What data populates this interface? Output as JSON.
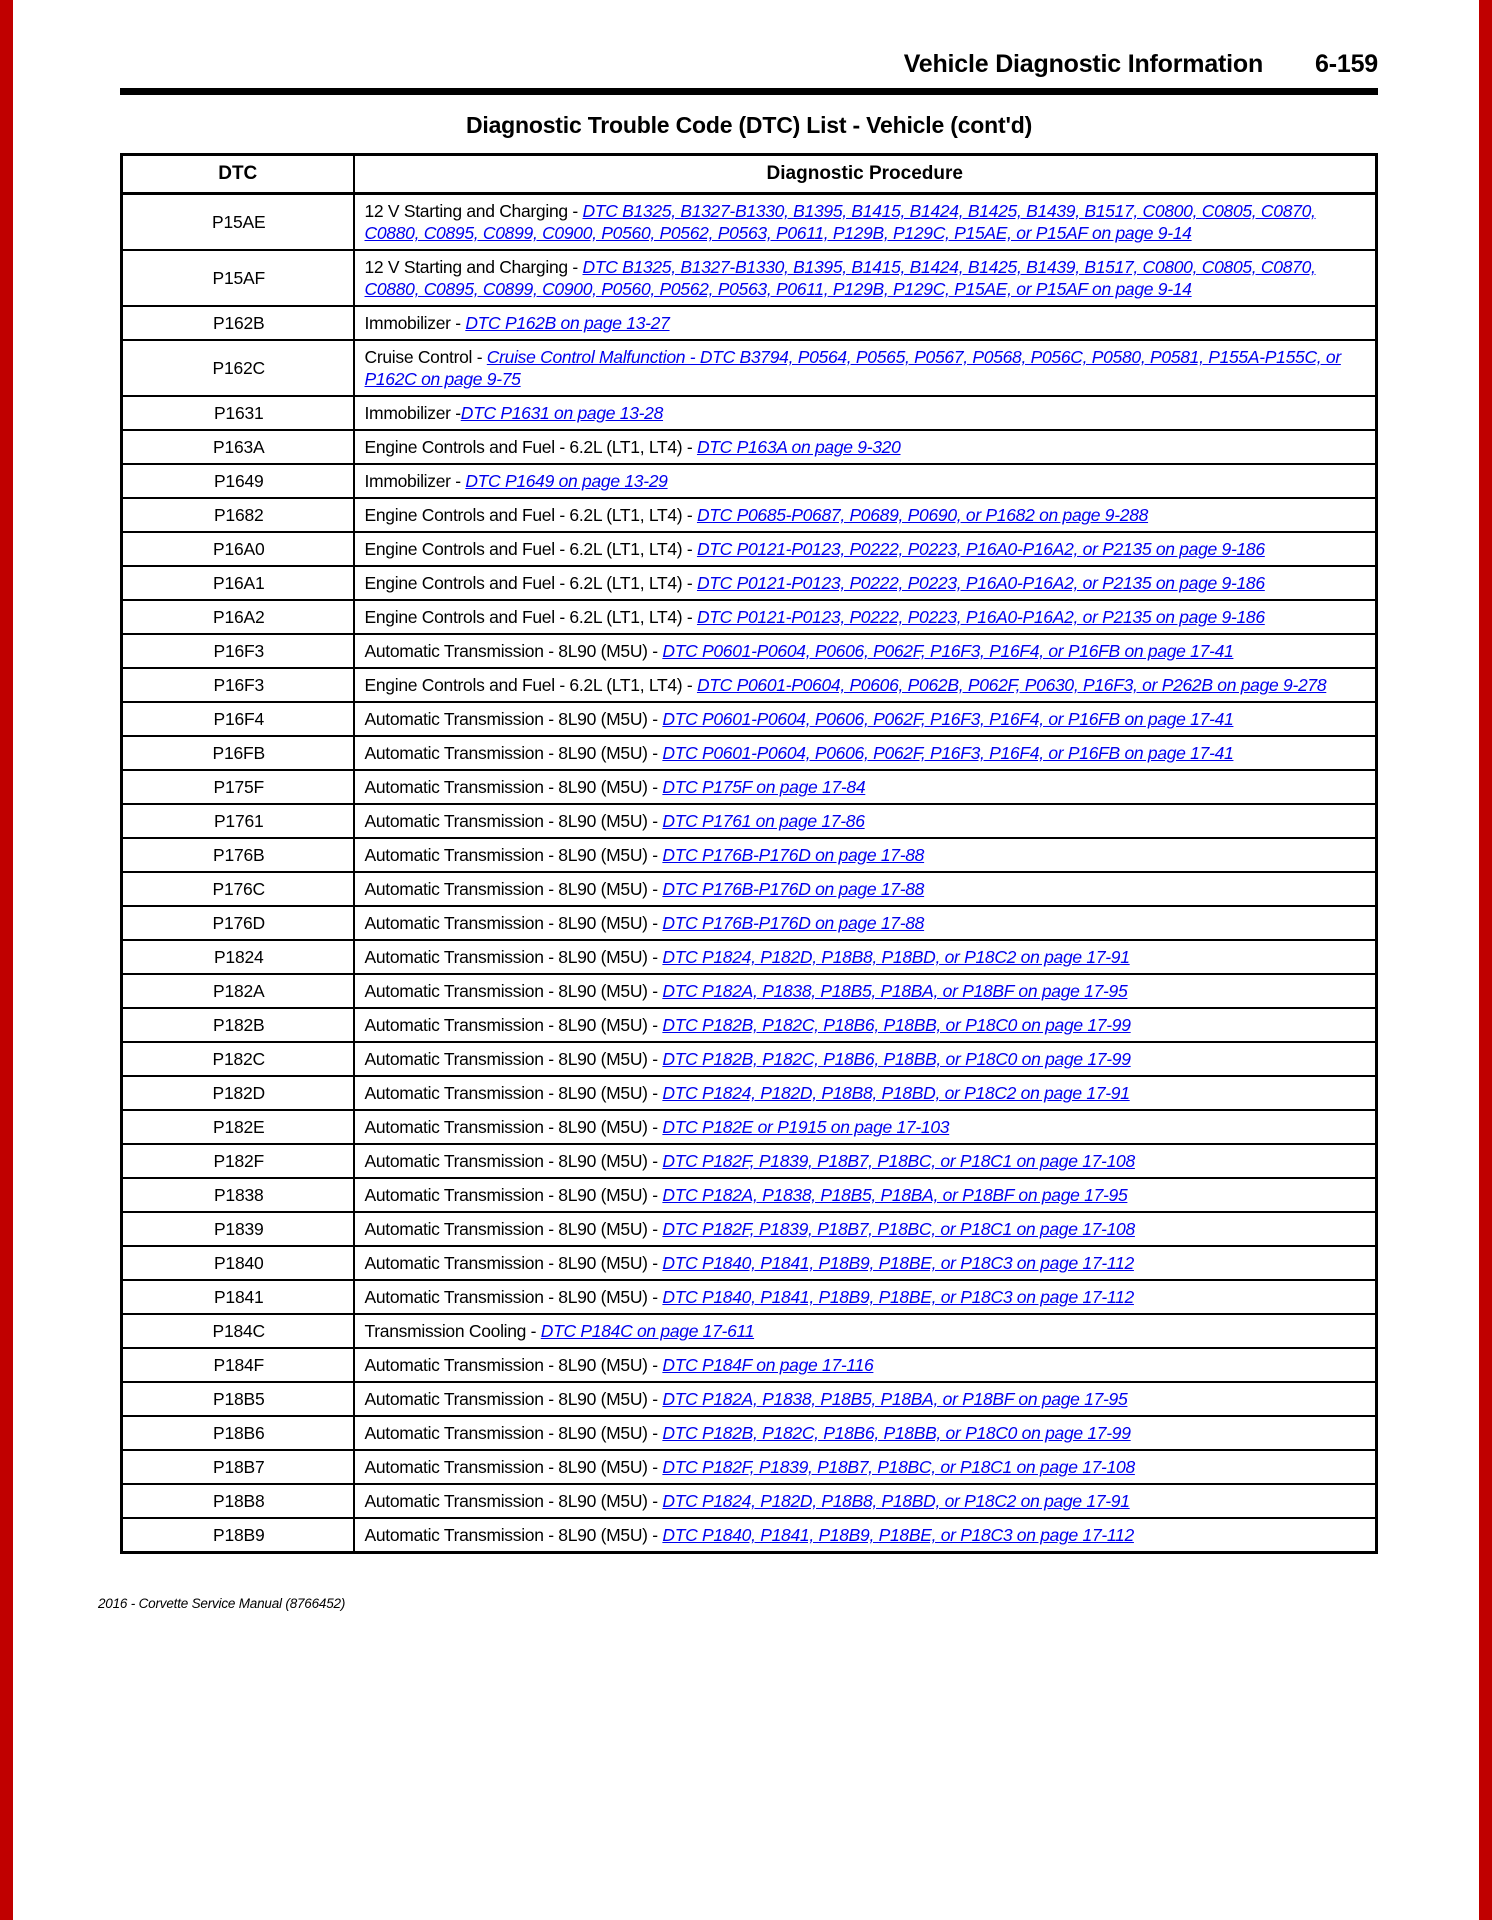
{
  "header": {
    "section_title": "Vehicle Diagnostic Information",
    "page_number": "6-159"
  },
  "title": "Diagnostic Trouble Code (DTC) List - Vehicle (cont'd)",
  "colors": {
    "link_blue": "#0000ee",
    "edge_red": "#c00000"
  },
  "table": {
    "columns": [
      "DTC",
      "Diagnostic Procedure"
    ],
    "rows": [
      {
        "dtc": "P15AE",
        "prefix": "12 V Starting and Charging - ",
        "link": "DTC B1325, B1327-B1330, B1395, B1415, B1424, B1425, B1439, B1517, C0800, C0805, C0870, C0880, C0895, C0899, C0900, P0560, P0562, P0563, P0611, P129B, P129C, P15AE, or P15AF on page 9-14"
      },
      {
        "dtc": "P15AF",
        "prefix": "12 V Starting and Charging - ",
        "link": "DTC B1325, B1327-B1330, B1395, B1415, B1424, B1425, B1439, B1517, C0800, C0805, C0870, C0880, C0895, C0899, C0900, P0560, P0562, P0563, P0611, P129B, P129C, P15AE, or P15AF on page 9-14"
      },
      {
        "dtc": "P162B",
        "prefix": "Immobilizer - ",
        "link": "DTC P162B on page 13-27"
      },
      {
        "dtc": "P162C",
        "prefix": "Cruise Control - ",
        "link": "Cruise Control Malfunction - DTC B3794, P0564, P0565, P0567, P0568, P056C, P0580, P0581, P155A-P155C, or P162C on page 9-75"
      },
      {
        "dtc": "P1631",
        "prefix": "Immobilizer -",
        "link": "DTC P1631 on page 13-28"
      },
      {
        "dtc": "P163A",
        "prefix": "Engine Controls and Fuel - 6.2L (LT1, LT4) - ",
        "link": "DTC P163A on page 9-320"
      },
      {
        "dtc": "P1649",
        "prefix": "Immobilizer - ",
        "link": "DTC P1649 on page 13-29"
      },
      {
        "dtc": "P1682",
        "prefix": "Engine Controls and Fuel - 6.2L (LT1, LT4) - ",
        "link": "DTC P0685-P0687, P0689, P0690, or P1682 on page 9-288"
      },
      {
        "dtc": "P16A0",
        "prefix": "Engine Controls and Fuel - 6.2L (LT1, LT4) - ",
        "link": "DTC P0121-P0123, P0222, P0223, P16A0-P16A2, or P2135 on page 9-186"
      },
      {
        "dtc": "P16A1",
        "prefix": "Engine Controls and Fuel - 6.2L (LT1, LT4) - ",
        "link": "DTC P0121-P0123, P0222, P0223, P16A0-P16A2, or P2135 on page 9-186"
      },
      {
        "dtc": "P16A2",
        "prefix": "Engine Controls and Fuel - 6.2L (LT1, LT4) - ",
        "link": "DTC P0121-P0123, P0222, P0223, P16A0-P16A2, or P2135 on page 9-186"
      },
      {
        "dtc": "P16F3",
        "prefix": "Automatic Transmission - 8L90 (M5U) - ",
        "link": "DTC P0601-P0604, P0606, P062F, P16F3, P16F4, or P16FB on page 17-41"
      },
      {
        "dtc": "P16F3",
        "prefix": "Engine Controls and Fuel - 6.2L (LT1, LT4) - ",
        "link": "DTC P0601-P0604, P0606, P062B, P062F, P0630, P16F3, or P262B on page 9-278"
      },
      {
        "dtc": "P16F4",
        "prefix": "Automatic Transmission - 8L90 (M5U) - ",
        "link": "DTC P0601-P0604, P0606, P062F, P16F3, P16F4, or P16FB on page 17-41"
      },
      {
        "dtc": "P16FB",
        "prefix": "Automatic Transmission - 8L90 (M5U) - ",
        "link": "DTC P0601-P0604, P0606, P062F, P16F3, P16F4, or P16FB on page 17-41"
      },
      {
        "dtc": "P175F",
        "prefix": "Automatic Transmission - 8L90 (M5U) - ",
        "link": "DTC P175F on page 17-84"
      },
      {
        "dtc": "P1761",
        "prefix": "Automatic Transmission - 8L90 (M5U) - ",
        "link": "DTC P1761 on page 17-86"
      },
      {
        "dtc": "P176B",
        "prefix": "Automatic Transmission - 8L90 (M5U) - ",
        "link": "DTC P176B-P176D on page 17-88"
      },
      {
        "dtc": "P176C",
        "prefix": "Automatic Transmission - 8L90 (M5U) - ",
        "link": "DTC P176B-P176D on page 17-88"
      },
      {
        "dtc": "P176D",
        "prefix": "Automatic Transmission - 8L90 (M5U) - ",
        "link": "DTC P176B-P176D on page 17-88"
      },
      {
        "dtc": "P1824",
        "prefix": "Automatic Transmission - 8L90 (M5U) - ",
        "link": "DTC P1824, P182D, P18B8, P18BD, or P18C2 on page 17-91"
      },
      {
        "dtc": "P182A",
        "prefix": "Automatic Transmission - 8L90 (M5U) - ",
        "link": "DTC P182A, P1838, P18B5, P18BA, or P18BF on page 17-95"
      },
      {
        "dtc": "P182B",
        "prefix": "Automatic Transmission - 8L90 (M5U) - ",
        "link": "DTC P182B, P182C, P18B6, P18BB, or P18C0 on page 17-99"
      },
      {
        "dtc": "P182C",
        "prefix": "Automatic Transmission - 8L90 (M5U) - ",
        "link": "DTC P182B, P182C, P18B6, P18BB, or P18C0 on page 17-99"
      },
      {
        "dtc": "P182D",
        "prefix": "Automatic Transmission - 8L90 (M5U) - ",
        "link": "DTC P1824, P182D, P18B8, P18BD, or P18C2 on page 17-91"
      },
      {
        "dtc": "P182E",
        "prefix": "Automatic Transmission - 8L90 (M5U) - ",
        "link": "DTC P182E or P1915 on page 17-103"
      },
      {
        "dtc": "P182F",
        "prefix": "Automatic Transmission - 8L90 (M5U) - ",
        "link": "DTC P182F, P1839, P18B7, P18BC, or P18C1 on page 17-108"
      },
      {
        "dtc": "P1838",
        "prefix": "Automatic Transmission - 8L90 (M5U) - ",
        "link": "DTC P182A, P1838, P18B5, P18BA, or P18BF on page 17-95"
      },
      {
        "dtc": "P1839",
        "prefix": "Automatic Transmission - 8L90 (M5U) - ",
        "link": "DTC P182F, P1839, P18B7, P18BC, or P18C1 on page 17-108"
      },
      {
        "dtc": "P1840",
        "prefix": "Automatic Transmission - 8L90 (M5U) - ",
        "link": "DTC P1840, P1841, P18B9, P18BE, or P18C3 on page 17-112"
      },
      {
        "dtc": "P1841",
        "prefix": "Automatic Transmission - 8L90 (M5U) - ",
        "link": "DTC P1840, P1841, P18B9, P18BE, or P18C3 on page 17-112"
      },
      {
        "dtc": "P184C",
        "prefix": "Transmission Cooling - ",
        "link": "DTC P184C on page 17-611"
      },
      {
        "dtc": "P184F",
        "prefix": "Automatic Transmission - 8L90 (M5U) - ",
        "link": "DTC P184F on page 17-116"
      },
      {
        "dtc": "P18B5",
        "prefix": "Automatic Transmission - 8L90 (M5U) - ",
        "link": "DTC P182A, P1838, P18B5, P18BA, or P18BF on page 17-95"
      },
      {
        "dtc": "P18B6",
        "prefix": "Automatic Transmission - 8L90 (M5U) - ",
        "link": "DTC P182B, P182C, P18B6, P18BB, or P18C0 on page 17-99"
      },
      {
        "dtc": "P18B7",
        "prefix": "Automatic Transmission - 8L90 (M5U) - ",
        "link": "DTC P182F, P1839, P18B7, P18BC, or P18C1 on page 17-108"
      },
      {
        "dtc": "P18B8",
        "prefix": "Automatic Transmission - 8L90 (M5U) - ",
        "link": "DTC P1824, P182D, P18B8, P18BD, or P18C2 on page 17-91"
      },
      {
        "dtc": "P18B9",
        "prefix": "Automatic Transmission - 8L90 (M5U) - ",
        "link": "DTC P1840, P1841, P18B9, P18BE, or P18C3 on page 17-112"
      }
    ]
  },
  "footer": "2016 - Corvette Service Manual (8766452)"
}
